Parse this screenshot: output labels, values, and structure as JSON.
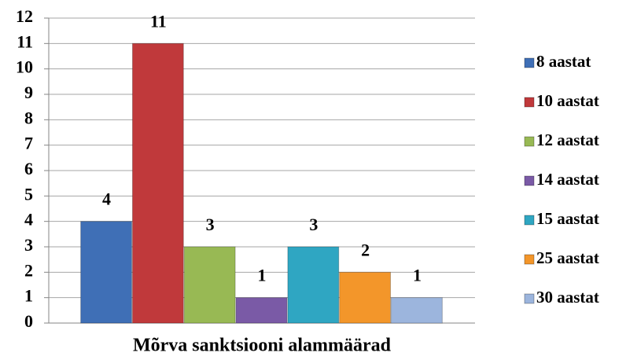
{
  "chart_data": {
    "type": "bar",
    "categories": [
      "Mõrva sanktsiooni alammäärad"
    ],
    "series": [
      {
        "name": "8 aastat",
        "color": "#3f6fb6",
        "values": [
          4
        ]
      },
      {
        "name": "10 aastat",
        "color": "#c0393b",
        "values": [
          11
        ]
      },
      {
        "name": "12 aastat",
        "color": "#98b954",
        "values": [
          3
        ]
      },
      {
        "name": "14 aastat",
        "color": "#7a5aa6",
        "values": [
          1
        ]
      },
      {
        "name": "15 aastat",
        "color": "#2fa6c2",
        "values": [
          3
        ]
      },
      {
        "name": "25 aastat",
        "color": "#f3962a",
        "values": [
          2
        ]
      },
      {
        "name": "30 aastat",
        "color": "#9cb5dd",
        "values": [
          1
        ]
      }
    ],
    "ylim": [
      0,
      12
    ],
    "yticks": [
      0,
      1,
      2,
      3,
      4,
      5,
      6,
      7,
      8,
      9,
      10,
      11,
      12
    ],
    "grid": true,
    "legend": "right",
    "data_labels": true
  }
}
